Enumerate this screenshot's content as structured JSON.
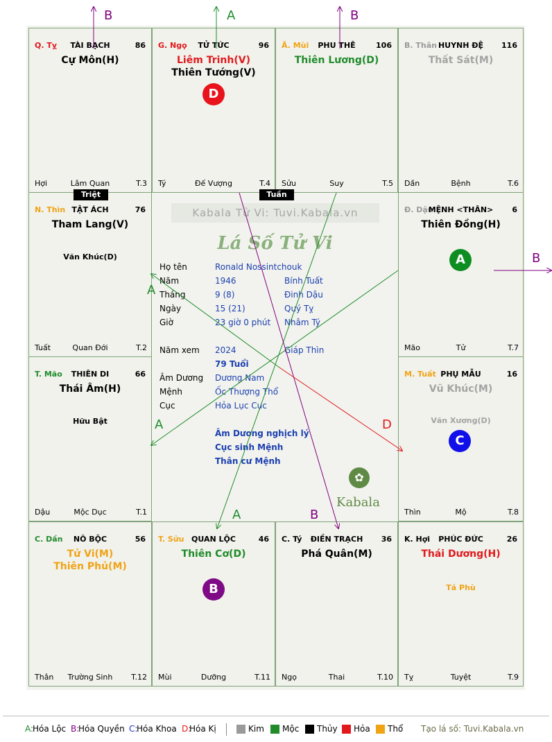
{
  "cells": [
    {
      "id": "ty",
      "branch_label": "Q. Tỵ",
      "branch_color": "#e1191d",
      "palace": "TÀI BẠCH",
      "score": "86",
      "stars": [
        {
          "text": "Cự Môn(H)",
          "color": "#000000"
        }
      ],
      "minors": [],
      "foot": [
        "Hợi",
        "Lâm Quan",
        "T.3"
      ]
    },
    {
      "id": "ngo",
      "branch_label": "G. Ngọ",
      "branch_color": "#e1191d",
      "palace": "TỬ TỨC",
      "score": "96",
      "stars": [
        {
          "text": "Liêm Trinh(V)",
          "color": "#e1191d"
        },
        {
          "text": "Thiên Tướng(V)",
          "color": "#000000"
        }
      ],
      "minors": [],
      "foot": [
        "Tý",
        "Đế Vượng",
        "T.4"
      ]
    },
    {
      "id": "mui",
      "branch_label": "Ã. Mùi",
      "branch_color": "#f0a315",
      "palace": "PHU THÊ",
      "score": "106",
      "stars": [
        {
          "text": "Thiên Lương(D)",
          "color": "#1f8b2b"
        }
      ],
      "minors": [],
      "foot": [
        "Sửu",
        "Suy",
        "T.5"
      ]
    },
    {
      "id": "than",
      "branch_label": "B. Thân",
      "branch_color": "#9a9a9a",
      "palace": "HUYNH ĐỆ",
      "score": "116",
      "stars": [
        {
          "text": "Thất Sát(M)",
          "color": "#a3a3a3"
        }
      ],
      "minors": [],
      "foot": [
        "Dần",
        "Bệnh",
        "T.6"
      ]
    },
    {
      "id": "thin",
      "branch_label": "N. Thìn",
      "branch_color": "#f0a315",
      "palace": "TẬT ÁCH",
      "score": "76",
      "stars": [
        {
          "text": "Tham Lang(V)",
          "color": "#000000"
        }
      ],
      "minors": [
        {
          "text": "Văn Khúc(D)",
          "color": "#000000"
        }
      ],
      "foot": [
        "Tuất",
        "Quan Đới",
        "T.2"
      ]
    },
    {
      "id": "dau",
      "branch_label": "Đ. Dậu",
      "branch_color": "#9a9a9a",
      "palace": "MỆNH <THÂN>",
      "score": "6",
      "stars": [
        {
          "text": "Thiên Đồng(H)",
          "color": "#000000"
        }
      ],
      "minors": [],
      "foot": [
        "Mão",
        "Tử",
        "T.7"
      ]
    },
    {
      "id": "mao",
      "branch_label": "T. Mão",
      "branch_color": "#1f8b2b",
      "palace": "THIÊN DI",
      "score": "66",
      "stars": [
        {
          "text": "Thái Âm(H)",
          "color": "#000000"
        }
      ],
      "minors": [
        {
          "text": "Hữu Bật",
          "color": "#000000"
        }
      ],
      "foot": [
        "Dậu",
        "Mộc Dục",
        "T.1"
      ]
    },
    {
      "id": "tuat",
      "branch_label": "M. Tuất",
      "branch_color": "#f0a315",
      "palace": "PHỤ MẪU",
      "score": "16",
      "stars": [
        {
          "text": "Vũ Khúc(M)",
          "color": "#a3a3a3"
        }
      ],
      "minors": [
        {
          "text": "Văn Xương(D)",
          "color": "#a3a3a3"
        }
      ],
      "foot": [
        "Thìn",
        "Mộ",
        "T.8"
      ]
    },
    {
      "id": "dan",
      "branch_label": "C. Dần",
      "branch_color": "#1f8b2b",
      "palace": "NÔ BỘC",
      "score": "56",
      "stars": [
        {
          "text": "Tử Vi(M)",
          "color": "#f0a315"
        },
        {
          "text": "Thiên Phủ(M)",
          "color": "#f0a315"
        }
      ],
      "minors": [],
      "foot": [
        "Thân",
        "Trường Sinh",
        "T.12"
      ]
    },
    {
      "id": "suu",
      "branch_label": "T. Sửu",
      "branch_color": "#f0a315",
      "palace": "QUAN LỘC",
      "score": "46",
      "stars": [
        {
          "text": "Thiên Cơ(D)",
          "color": "#1f8b2b"
        }
      ],
      "minors": [],
      "foot": [
        "Mùi",
        "Dưỡng",
        "T.11"
      ]
    },
    {
      "id": "ty2",
      "branch_label": "C. Tý",
      "branch_color": "#000000",
      "palace": "ĐIỀN TRẠCH",
      "score": "36",
      "stars": [
        {
          "text": "Phá Quân(M)",
          "color": "#000000"
        }
      ],
      "minors": [],
      "foot": [
        "Ngọ",
        "Thai",
        "T.10"
      ]
    },
    {
      "id": "hoi",
      "branch_label": "K. Hợi",
      "branch_color": "#000000",
      "palace": "PHÚC ĐỨC",
      "score": "26",
      "stars": [
        {
          "text": "Thái Dương(H)",
          "color": "#e1191d"
        }
      ],
      "minors": [
        {
          "text": "Tả Phù",
          "color": "#f0a315"
        }
      ],
      "foot": [
        "Tỵ",
        "Tuyệt",
        "T.9"
      ]
    }
  ],
  "tags": {
    "triet": "Triệt",
    "tuan": "Tuần"
  },
  "badges": {
    "D": "D",
    "A": "A",
    "C": "C",
    "B": "B"
  },
  "arrow_letters": {
    "a": "A",
    "b": "B",
    "d": "D"
  },
  "center": {
    "watermark": "Kabala Tử Vi: Tuvi.Kabala.vn",
    "script_title": "Lá Số Tử Vi",
    "rows": [
      {
        "label": "Họ tên",
        "v1": "Ronald Nossintchouk",
        "v2": ""
      },
      {
        "label": "Năm",
        "v1": "1946",
        "v2": "Bính Tuất"
      },
      {
        "label": "Tháng",
        "v1": "9  (8)",
        "v2": "Đinh Dậu"
      },
      {
        "label": "Ngày",
        "v1": "15  (21)",
        "v2": "Quý Tỵ"
      },
      {
        "label": "Giờ",
        "v1": "23 giờ 0 phút",
        "v2": "Nhâm Tý"
      }
    ],
    "year_view": {
      "label": "Năm xem",
      "v1": "2024",
      "v2": "Giáp Thìn"
    },
    "age": "79 Tuổi",
    "rows2": [
      {
        "label": "Âm Dương",
        "v1": "Dương Nam"
      },
      {
        "label": "Mệnh",
        "v1": "Ốc Thượng Thổ"
      },
      {
        "label": "Cục",
        "v1": "Hỏa Lục Cục"
      }
    ],
    "notes": [
      "Âm Dương nghịch lý",
      "Cục sinh Mệnh",
      "Thân cư Mệnh"
    ],
    "brand": "Kabala"
  },
  "legend": {
    "items": [
      {
        "key": "A:",
        "text": " Hóa Lộc",
        "color": "#1f8b2b"
      },
      {
        "key": "B:",
        "text": " Hóa Quyền",
        "color": "#800080"
      },
      {
        "key": "C:",
        "text": " Hóa Khoa",
        "color": "#1c2fd0"
      },
      {
        "key": "D:",
        "text": " Hóa Kị",
        "color": "#e1191d"
      }
    ],
    "elements": [
      {
        "name": "Kim",
        "color": "#9a9a9a"
      },
      {
        "name": "Mộc",
        "color": "#1f8b2b"
      },
      {
        "name": "Thủy",
        "color": "#000000"
      },
      {
        "name": "Hỏa",
        "color": "#e1191d"
      },
      {
        "name": "Thổ",
        "color": "#f0a315"
      }
    ],
    "credit": "Tạo lá số: Tuvi.Kabala.vn"
  }
}
